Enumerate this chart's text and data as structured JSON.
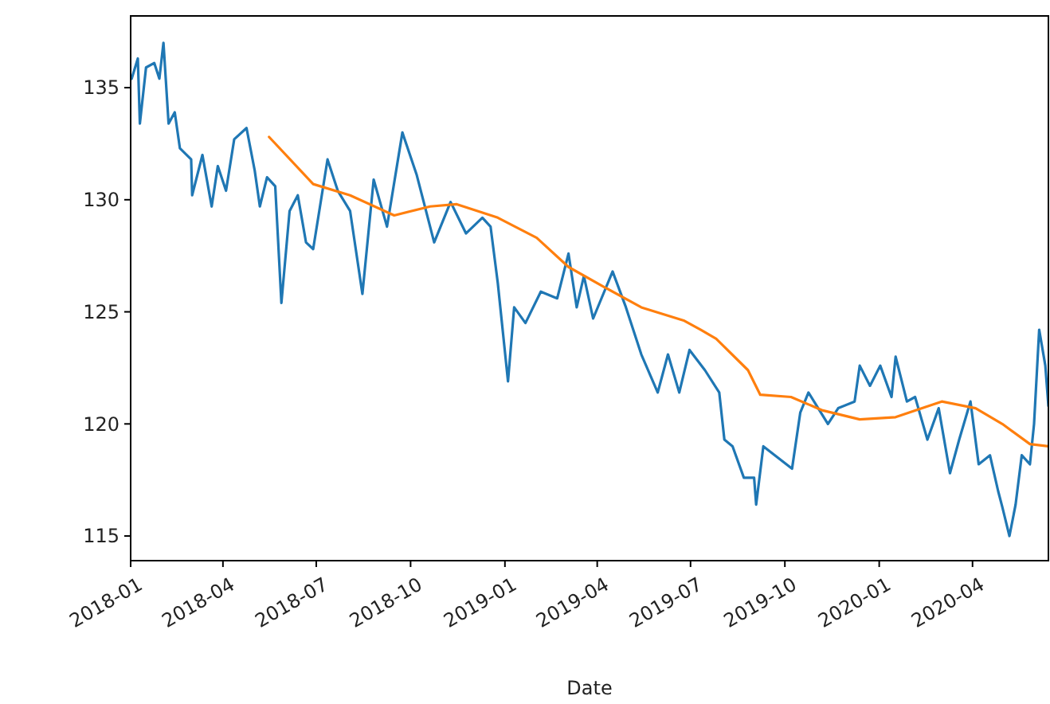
{
  "chart_data": {
    "type": "line",
    "xlabel": "Date",
    "xlim": [
      "2018-01-01",
      "2020-06-14"
    ],
    "ylim": [
      113.9,
      138.2
    ],
    "xticks": [
      {
        "value": "2018-01-01",
        "label": "2018-01"
      },
      {
        "value": "2018-04-01",
        "label": "2018-04"
      },
      {
        "value": "2018-07-01",
        "label": "2018-07"
      },
      {
        "value": "2018-10-01",
        "label": "2018-10"
      },
      {
        "value": "2019-01-01",
        "label": "2019-01"
      },
      {
        "value": "2019-04-01",
        "label": "2019-04"
      },
      {
        "value": "2019-07-01",
        "label": "2019-07"
      },
      {
        "value": "2019-10-01",
        "label": "2019-10"
      },
      {
        "value": "2020-01-01",
        "label": "2020-01"
      },
      {
        "value": "2020-04-01",
        "label": "2020-04"
      }
    ],
    "yticks": [
      115,
      120,
      125,
      130,
      135
    ],
    "grid": false,
    "series": [
      {
        "color": "#1f77b4",
        "x": [
          "2018-01-02",
          "2018-01-08",
          "2018-01-10",
          "2018-01-16",
          "2018-01-24",
          "2018-01-29",
          "2018-02-02",
          "2018-02-07",
          "2018-02-13",
          "2018-02-18",
          "2018-03-01",
          "2018-03-02",
          "2018-03-12",
          "2018-03-21",
          "2018-03-27",
          "2018-04-04",
          "2018-04-12",
          "2018-04-24",
          "2018-05-02",
          "2018-05-07",
          "2018-05-14",
          "2018-05-22",
          "2018-05-28",
          "2018-06-05",
          "2018-06-13",
          "2018-06-21",
          "2018-06-28",
          "2018-07-12",
          "2018-07-22",
          "2018-08-03",
          "2018-08-15",
          "2018-08-26",
          "2018-09-08",
          "2018-09-23",
          "2018-10-07",
          "2018-10-24",
          "2018-11-09",
          "2018-11-24",
          "2018-12-10",
          "2018-12-18",
          "2018-12-25",
          "2019-01-04",
          "2019-01-10",
          "2019-01-21",
          "2019-02-05",
          "2019-02-21",
          "2019-03-04",
          "2019-03-12",
          "2019-03-19",
          "2019-03-28",
          "2019-04-16",
          "2019-04-29",
          "2019-05-14",
          "2019-05-30",
          "2019-06-09",
          "2019-06-20",
          "2019-06-30",
          "2019-07-15",
          "2019-07-29",
          "2019-08-03",
          "2019-08-11",
          "2019-08-22",
          "2019-09-01",
          "2019-09-03",
          "2019-09-10",
          "2019-10-08",
          "2019-10-16",
          "2019-10-24",
          "2019-11-12",
          "2019-11-22",
          "2019-12-08",
          "2019-12-13",
          "2019-12-23",
          "2020-01-02",
          "2020-01-13",
          "2020-01-17",
          "2020-01-28",
          "2020-02-05",
          "2020-02-17",
          "2020-02-28",
          "2020-03-10",
          "2020-03-19",
          "2020-03-30",
          "2020-04-07",
          "2020-04-18",
          "2020-04-26",
          "2020-04-30",
          "2020-05-07",
          "2020-05-13",
          "2020-05-19",
          "2020-05-27",
          "2020-05-31",
          "2020-06-05",
          "2020-06-11",
          "2020-06-14"
        ],
        "values": [
          135.4,
          136.3,
          133.4,
          135.9,
          136.1,
          135.4,
          137,
          133.4,
          133.9,
          132.3,
          131.8,
          130.2,
          132.0,
          129.7,
          131.5,
          130.4,
          132.7,
          133.2,
          131.3,
          129.7,
          131.0,
          130.6,
          125.4,
          129.5,
          130.2,
          128.1,
          127.8,
          131.8,
          130.4,
          129.5,
          125.8,
          130.9,
          128.8,
          133.0,
          131.1,
          128.1,
          129.9,
          128.5,
          129.2,
          128.8,
          126.3,
          121.9,
          125.2,
          124.5,
          125.9,
          125.6,
          127.6,
          125.2,
          126.6,
          124.7,
          126.8,
          125.2,
          123.1,
          121.4,
          123.1,
          121.4,
          123.3,
          122.4,
          121.4,
          119.3,
          119.0,
          117.6,
          117.6,
          116.4,
          119.0,
          118.0,
          120.5,
          121.4,
          120.0,
          120.7,
          121.0,
          122.6,
          121.7,
          122.6,
          121.2,
          123.0,
          121.0,
          121.2,
          119.3,
          120.7,
          117.8,
          119.3,
          121.0,
          118.2,
          118.6,
          117.0,
          116.3,
          115.0,
          116.4,
          118.6,
          118.2,
          120.0,
          124.2,
          122.6,
          120.8
        ]
      },
      {
        "color": "#ff7f0e",
        "x": [
          "2018-05-16",
          "2018-06-28",
          "2018-08-03",
          "2018-09-15",
          "2018-10-20",
          "2018-11-15",
          "2018-12-25",
          "2019-02-01",
          "2019-03-04",
          "2019-04-08",
          "2019-05-14",
          "2019-06-25",
          "2019-07-11",
          "2019-07-26",
          "2019-08-26",
          "2019-09-07",
          "2019-10-07",
          "2019-11-07",
          "2019-12-13",
          "2020-01-17",
          "2020-03-02",
          "2020-04-04",
          "2020-04-30",
          "2020-05-27",
          "2020-06-14"
        ],
        "values": [
          132.8,
          130.7,
          130.2,
          129.3,
          129.7,
          129.8,
          129.2,
          128.3,
          127.0,
          126.1,
          125.2,
          124.6,
          124.2,
          123.8,
          122.4,
          121.3,
          121.2,
          120.6,
          120.2,
          120.3,
          121.0,
          120.7,
          120.0,
          119.1,
          119.0
        ]
      }
    ]
  }
}
